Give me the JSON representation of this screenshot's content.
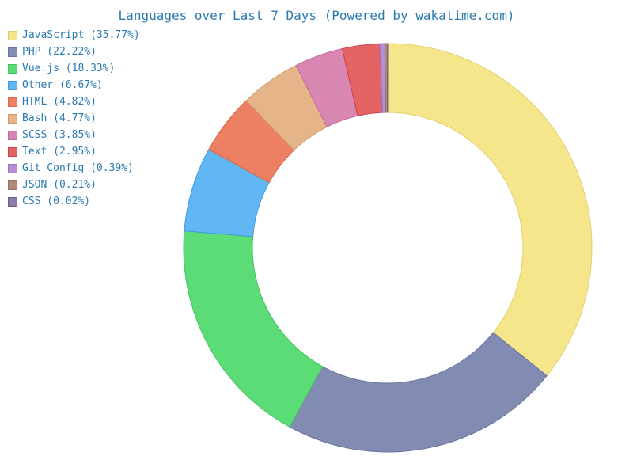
{
  "chart_data": {
    "type": "pie",
    "variant": "donut",
    "title": "Languages over Last 7 Days (Powered by wakatime.com)",
    "legend_position": "top-left",
    "unit": "%",
    "slices": [
      {
        "label": "JavaScript (35.77%)",
        "name": "JavaScript",
        "value": 35.77,
        "color": "#f5e68c",
        "stroke": "#e0cf6a"
      },
      {
        "label": "PHP (22.22%)",
        "name": "PHP",
        "value": 22.22,
        "color": "#828cb2",
        "stroke": "#6a74a0"
      },
      {
        "label": "Vue.js (18.33%)",
        "name": "Vue.js",
        "value": 18.33,
        "color": "#5cdc76",
        "stroke": "#44c45e"
      },
      {
        "label": "Other (6.67%)",
        "name": "Other",
        "value": 6.67,
        "color": "#61b6f4",
        "stroke": "#3f9be0"
      },
      {
        "label": "HTML (4.82%)",
        "name": "HTML",
        "value": 4.82,
        "color": "#ed8062",
        "stroke": "#d8664a"
      },
      {
        "label": "Bash (4.77%)",
        "name": "Bash",
        "value": 4.77,
        "color": "#e6b489",
        "stroke": "#d29c70"
      },
      {
        "label": "SCSS (3.85%)",
        "name": "SCSS",
        "value": 3.85,
        "color": "#d787b1",
        "stroke": "#c06c9a"
      },
      {
        "label": "Text (2.95%)",
        "name": "Text",
        "value": 2.95,
        "color": "#e46464",
        "stroke": "#cc3f4f"
      },
      {
        "label": "Git Config (0.39%)",
        "name": "Git Config",
        "value": 0.39,
        "color": "#b68ed6",
        "stroke": "#9a70c0"
      },
      {
        "label": "JSON (0.21%)",
        "name": "JSON",
        "value": 0.21,
        "color": "#b08878",
        "stroke": "#987060"
      },
      {
        "label": "CSS (0.02%)",
        "name": "CSS",
        "value": 0.02,
        "color": "#8c7aa8",
        "stroke": "#6e5c8c"
      }
    ]
  }
}
